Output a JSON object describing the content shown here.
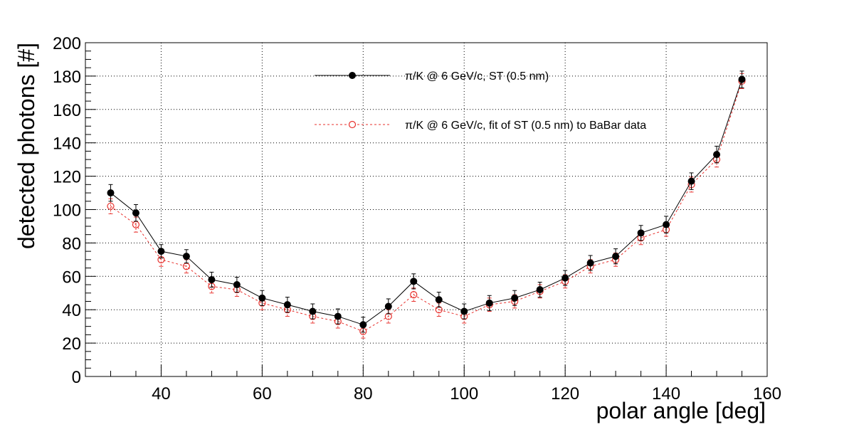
{
  "chart_data": {
    "type": "scatter",
    "title": "",
    "xlabel": "polar angle [deg]",
    "ylabel": "detected photons [#]",
    "xlim": [
      25,
      160
    ],
    "ylim": [
      0,
      200
    ],
    "xticks": [
      40,
      60,
      80,
      100,
      120,
      140,
      160
    ],
    "yticks": [
      0,
      20,
      40,
      60,
      80,
      100,
      120,
      140,
      160,
      180,
      200
    ],
    "grid": true,
    "legend_position": "top-center",
    "x": [
      30,
      35,
      40,
      45,
      50,
      55,
      60,
      65,
      70,
      75,
      80,
      85,
      90,
      95,
      100,
      105,
      110,
      115,
      120,
      125,
      130,
      135,
      140,
      145,
      150,
      155
    ],
    "series": [
      {
        "name": "π/K @ 6 GeV/c, ST (0.5 nm)",
        "color": "#000000",
        "marker": "filled-circle",
        "line": "solid",
        "values": [
          110,
          98,
          75,
          72,
          58,
          55,
          47,
          43,
          39,
          36,
          31,
          42,
          57,
          46,
          39,
          44,
          47,
          52,
          59,
          68,
          72,
          86,
          91,
          117,
          133,
          178
        ],
        "errors": [
          5,
          5,
          4,
          4,
          4.5,
          4.5,
          4.5,
          4.5,
          4.5,
          4.5,
          4.5,
          4.5,
          4.5,
          4.5,
          4.5,
          4.5,
          4.5,
          4.5,
          4.5,
          4.5,
          4.5,
          4.5,
          5,
          5,
          5,
          5
        ]
      },
      {
        "name": "π/K @ 6 GeV/c, fit of ST (0.5 nm) to BaBar data",
        "color": "#e8302c",
        "marker": "open-circle",
        "line": "dashed",
        "values": [
          102,
          91,
          70,
          66,
          54,
          52,
          44,
          40,
          36,
          33,
          27,
          36,
          49,
          40,
          36,
          43,
          45,
          51,
          57,
          66,
          70,
          83,
          88,
          115,
          130,
          177
        ],
        "errors": [
          4.5,
          4.5,
          4,
          4,
          4,
          4,
          4,
          4,
          4,
          4,
          4,
          4,
          4,
          4,
          4,
          4,
          4,
          4,
          4,
          4,
          4,
          4,
          4,
          4.5,
          4.5,
          4.5
        ]
      }
    ]
  }
}
